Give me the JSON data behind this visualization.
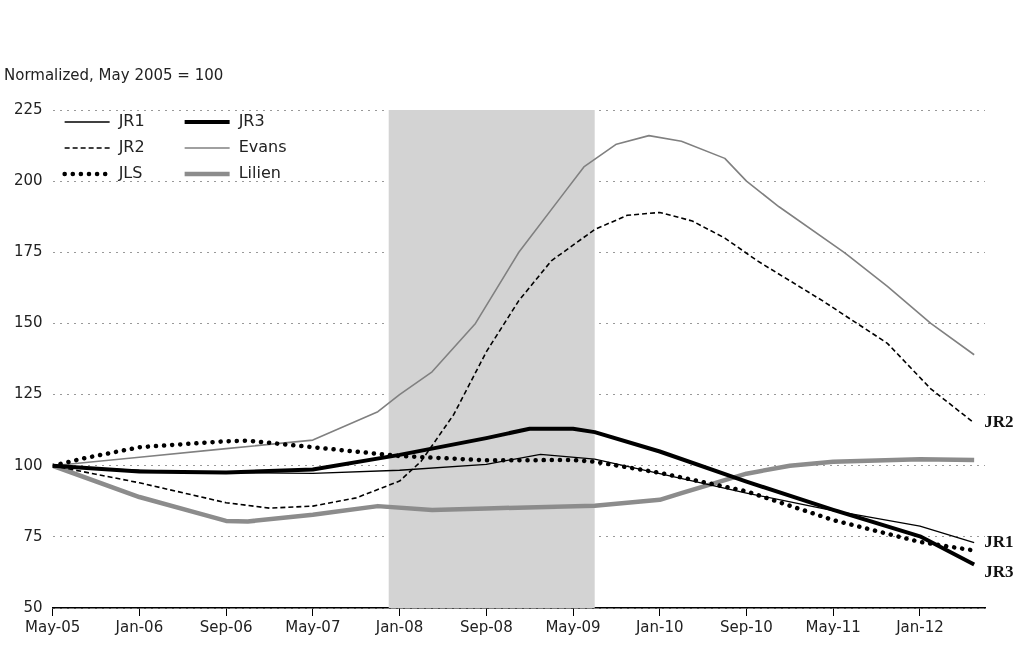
{
  "chart_data": {
    "type": "line",
    "ylabel": "Normalized, May 2005 = 100",
    "xlim": [
      "2005-05",
      "2012-07"
    ],
    "xticks": [
      {
        "value": "2005-05",
        "label": "May-05"
      },
      {
        "value": "2006-01",
        "label": "Jan-06"
      },
      {
        "value": "2006-09",
        "label": "Sep-06"
      },
      {
        "value": "2007-05",
        "label": "May-07"
      },
      {
        "value": "2008-01",
        "label": "Jan-08"
      },
      {
        "value": "2008-09",
        "label": "Sep-08"
      },
      {
        "value": "2009-05",
        "label": "May-09"
      },
      {
        "value": "2010-01",
        "label": "Jan-10"
      },
      {
        "value": "2010-09",
        "label": "Sep-10"
      },
      {
        "value": "2011-05",
        "label": "May-11"
      },
      {
        "value": "2012-01",
        "label": "Jan-12"
      }
    ],
    "ylim": [
      50,
      225
    ],
    "yticks": [
      50,
      75,
      100,
      125,
      150,
      175,
      200,
      225
    ],
    "grid": "y",
    "legend": "top left",
    "bands": [
      {
        "axis": "x",
        "from": "2007-12",
        "to": "2009-07",
        "color": "#d3d3d3"
      }
    ],
    "series": [
      {
        "name": "JR1",
        "color": "#000000",
        "line_style": "solid",
        "x": [
          "2005-05",
          "2005-09",
          "2006-01",
          "2006-09",
          "2007-05",
          "2008-01",
          "2008-09",
          "2009-02",
          "2009-07",
          "2010-01",
          "2010-09",
          "2011-05",
          "2012-01",
          "2012-06"
        ],
        "values": [
          100,
          99,
          98.4,
          97.6,
          97.3,
          98.4,
          100.5,
          104,
          102.3,
          97.2,
          90.4,
          84.2,
          78.8,
          73
        ]
      },
      {
        "name": "JR2",
        "color": "#000000",
        "line_style": "dashed",
        "x": [
          "2005-05",
          "2005-09",
          "2006-01",
          "2006-09",
          "2007-01",
          "2007-05",
          "2007-09",
          "2008-01",
          "2008-03",
          "2008-06",
          "2008-09",
          "2008-12",
          "2009-03",
          "2009-07",
          "2009-10",
          "2010-01",
          "2010-04",
          "2010-07",
          "2010-10",
          "2011-04",
          "2011-10",
          "2012-02",
          "2012-06"
        ],
        "values": [
          100,
          97,
          94,
          87,
          85.1,
          85.8,
          88.7,
          94.6,
          101.6,
          118,
          140,
          158,
          172,
          183,
          188,
          189,
          186,
          180,
          172,
          158,
          143,
          127,
          115
        ]
      },
      {
        "name": "JLS",
        "color": "#000000",
        "line_style": "dotted",
        "x": [
          "2005-05",
          "2005-08",
          "2006-01",
          "2006-09",
          "2006-11",
          "2007-05",
          "2008-01",
          "2008-09",
          "2009-05",
          "2009-07",
          "2010-01",
          "2010-09",
          "2011-05",
          "2012-01",
          "2012-06"
        ],
        "values": [
          100,
          102.7,
          106.5,
          108.6,
          108.8,
          106.5,
          103.4,
          101.9,
          102,
          101.4,
          97.5,
          91,
          80.9,
          73.2,
          70.2
        ]
      },
      {
        "name": "JR3",
        "color": "#000000",
        "line_style": "solid",
        "x": [
          "2005-05",
          "2006-01",
          "2006-09",
          "2007-05",
          "2008-01",
          "2008-09",
          "2009-01",
          "2009-05",
          "2009-07",
          "2010-01",
          "2010-09",
          "2011-05",
          "2012-01",
          "2012-06"
        ],
        "values": [
          100,
          98,
          97.6,
          98.7,
          103.8,
          109.7,
          113,
          113,
          111.8,
          105,
          94.4,
          84.5,
          75.2,
          65.3
        ]
      },
      {
        "name": "Evans",
        "color": "#808080",
        "line_style": "solid",
        "x": [
          "2005-05",
          "2006-01",
          "2006-09",
          "2007-05",
          "2007-11",
          "2008-01",
          "2008-04",
          "2008-08",
          "2008-12",
          "2009-04",
          "2009-06",
          "2009-09",
          "2009-12",
          "2010-03",
          "2010-07",
          "2010-09",
          "2010-12",
          "2011-06",
          "2011-10",
          "2012-02",
          "2012-06"
        ],
        "values": [
          100,
          103,
          106,
          109,
          119,
          125,
          133,
          150,
          175,
          195,
          205,
          213,
          216,
          214,
          208,
          200,
          191,
          175,
          163,
          150,
          139
        ]
      },
      {
        "name": "Lilien",
        "color": "#8c8c8c",
        "line_style": "solid",
        "x": [
          "2005-05",
          "2006-01",
          "2006-09",
          "2006-11",
          "2007-05",
          "2007-11",
          "2008-04",
          "2008-09",
          "2009-07",
          "2010-01",
          "2010-03",
          "2010-09",
          "2011-01",
          "2011-05",
          "2012-01",
          "2012-06"
        ],
        "values": [
          100,
          89,
          80.6,
          80.4,
          82.8,
          85.8,
          84.4,
          85,
          85.9,
          88,
          90.4,
          97.2,
          100,
          101.4,
          102.3,
          102
        ]
      }
    ],
    "annotations": [
      {
        "text": "JR2",
        "x": "2012-06",
        "y": 115
      },
      {
        "text": "JR1",
        "x": "2012-06",
        "y": 73
      },
      {
        "text": "JR3",
        "x": "2012-06",
        "y": 65.3
      }
    ]
  }
}
